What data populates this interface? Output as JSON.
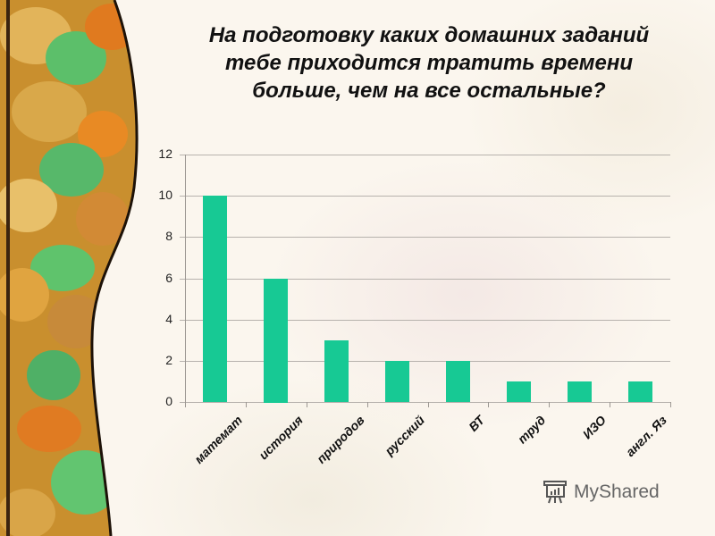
{
  "slide": {
    "title": "На подготовку каких домашних заданий тебе приходится тратить времени больше, чем на все остальные?",
    "title_lines": [
      "На подготовку каких домашних заданий",
      "тебе приходится тратить времени",
      "больше, чем на все остальные?"
    ],
    "watermark": {
      "icon": "presentation-board-icon",
      "text": "MyShared"
    },
    "colors": {
      "bar": "#17c994",
      "background": "#fbf6ee",
      "grid": "#b7b2ad"
    }
  },
  "chart_data": {
    "type": "bar",
    "title": "На подготовку каких домашних заданий тебе приходится тратить времени больше, чем на все остальные?",
    "categories": [
      "математ",
      "история",
      "природов",
      "русский",
      "ВТ",
      "труд",
      "ИЗО",
      "англ. Яз"
    ],
    "values": [
      10,
      6,
      3,
      2,
      2,
      1,
      1,
      1
    ],
    "xlabel": "",
    "ylabel": "",
    "ylim": [
      0,
      12
    ],
    "yticks": [
      "0",
      "2",
      "4",
      "6",
      "8",
      "10",
      "12"
    ],
    "grid": true,
    "legend": null,
    "bar_color": "#17c994"
  }
}
